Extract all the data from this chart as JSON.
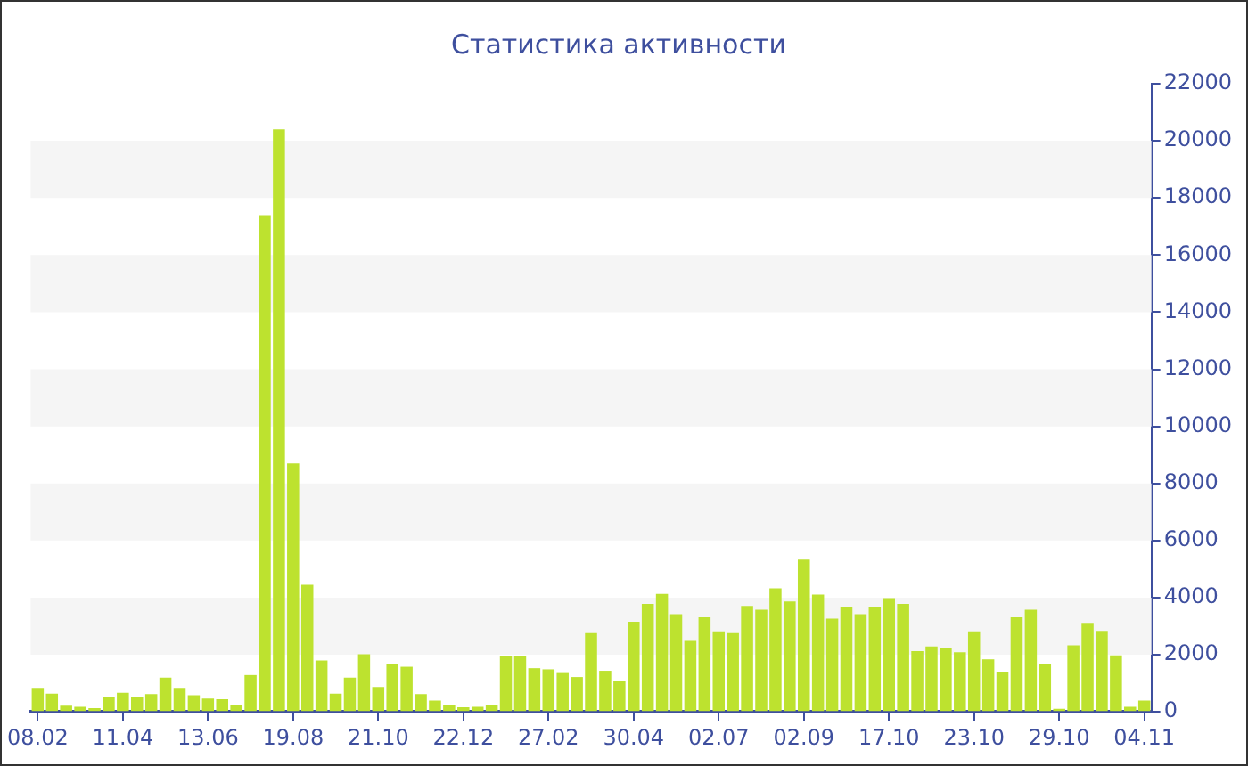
{
  "chart_data": {
    "type": "bar",
    "title": "Статистика активности",
    "categories": [
      "08.02",
      null,
      null,
      null,
      null,
      null,
      "11.04",
      null,
      null,
      null,
      null,
      null,
      "13.06",
      null,
      null,
      null,
      null,
      null,
      "19.08",
      null,
      null,
      null,
      null,
      null,
      "21.10",
      null,
      null,
      null,
      null,
      null,
      "22.12",
      null,
      null,
      null,
      null,
      null,
      "27.02",
      null,
      null,
      null,
      null,
      null,
      "30.04",
      null,
      null,
      null,
      null,
      null,
      "02.07",
      null,
      null,
      null,
      null,
      null,
      "02.09",
      null,
      null,
      null,
      null,
      null,
      "17.10",
      null,
      null,
      null,
      null,
      null,
      "23.10",
      null,
      null,
      null,
      null,
      null,
      "29.10",
      null,
      null,
      null,
      null,
      null,
      "04.11"
    ],
    "values": [
      840,
      640,
      220,
      180,
      130,
      510,
      670,
      510,
      620,
      1200,
      840,
      580,
      470,
      440,
      240,
      1290,
      17400,
      20400,
      8700,
      4450,
      1800,
      640,
      1200,
      2020,
      870,
      1670,
      1580,
      620,
      400,
      240,
      160,
      180,
      240,
      1960,
      1960,
      1530,
      1490,
      1360,
      1220,
      2760,
      1440,
      1070,
      3160,
      3780,
      4130,
      3420,
      2490,
      3310,
      2820,
      2760,
      3710,
      3580,
      4330,
      3870,
      5330,
      4110,
      3270,
      3690,
      3420,
      3670,
      3980,
      3780,
      2130,
      2290,
      2240,
      2090,
      2820,
      1840,
      1380,
      3310,
      3580,
      1670,
      110,
      2330,
      3090,
      2840,
      1980,
      180,
      400
    ],
    "color": "#bde22f",
    "ylim": [
      0,
      22000
    ],
    "yticks": [
      0,
      2000,
      4000,
      6000,
      8000,
      10000,
      12000,
      14000,
      16000,
      18000,
      20000,
      22000
    ],
    "bands": [
      {
        "axis": "y",
        "from": 2000,
        "to": 4000,
        "color": "#f5f5f5"
      },
      {
        "axis": "y",
        "from": 6000,
        "to": 8000,
        "color": "#f5f5f5"
      },
      {
        "axis": "y",
        "from": 10000,
        "to": 12000,
        "color": "#f5f5f5"
      },
      {
        "axis": "y",
        "from": 14000,
        "to": 16000,
        "color": "#f5f5f5"
      },
      {
        "axis": "y",
        "from": 18000,
        "to": 20000,
        "color": "#f5f5f5"
      }
    ]
  }
}
